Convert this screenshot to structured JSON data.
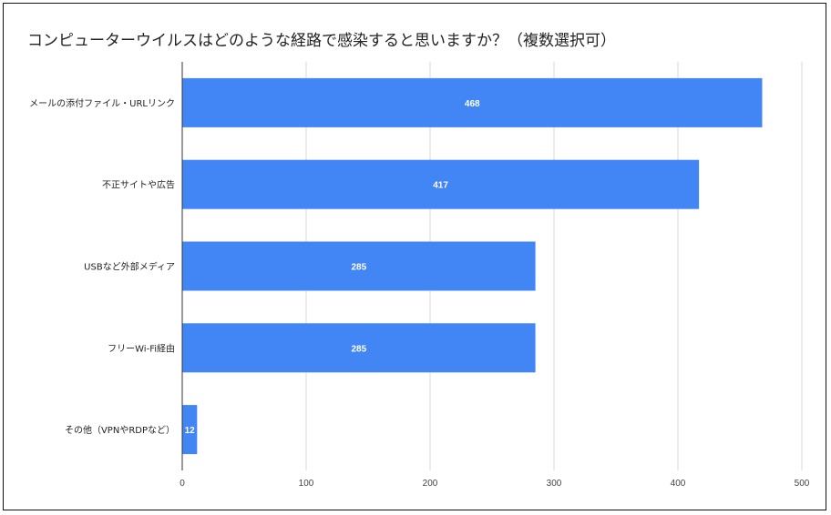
{
  "chart_data": {
    "type": "bar",
    "orientation": "horizontal",
    "title": "コンピューターウイルスはどのような経路で感染すると思いますか？（複数選択可）",
    "categories": [
      "メールの添付ファイル・URLリンク",
      "不正サイトや広告",
      "USBなど外部メディア",
      "フリーWi-Fi経由",
      "その他（VPNやRDPなど）"
    ],
    "values": [
      468,
      417,
      285,
      285,
      12
    ],
    "data_labels": [
      "468",
      "417",
      "285",
      "285",
      "12"
    ],
    "xlim": [
      0,
      500
    ],
    "x_ticks": [
      0,
      100,
      200,
      300,
      400,
      500
    ],
    "x_tick_labels": [
      "0",
      "100",
      "200",
      "300",
      "400",
      "500"
    ],
    "grid": true,
    "legend": "none",
    "bar_color": "#4285f4"
  }
}
